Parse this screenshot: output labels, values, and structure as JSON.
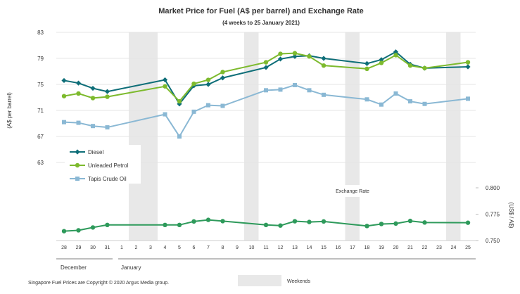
{
  "chart_data": {
    "type": "line",
    "title": "Market Price for Fuel (A$ per barrel) and Exchange Rate",
    "subtitle": "(4 weeks to 25 January 2021)",
    "ylabel": "(A$ per barrel)",
    "ylabel_right": "(US$ / A$)",
    "x": [
      "28",
      "29",
      "30",
      "31",
      "1",
      "2",
      "3",
      "4",
      "5",
      "6",
      "7",
      "8",
      "9",
      "10",
      "11",
      "12",
      "13",
      "14",
      "15",
      "16",
      "17",
      "18",
      "19",
      "20",
      "21",
      "22",
      "23",
      "24",
      "25"
    ],
    "months": [
      "December",
      "January"
    ],
    "ylim": [
      63,
      83
    ],
    "yticks": [
      63,
      67,
      71,
      75,
      79,
      83
    ],
    "ylim_right": [
      0.75,
      0.8
    ],
    "yticks_right": [
      0.75,
      0.775,
      0.8
    ],
    "yticks_right_labels": [
      "0.750",
      "0.775",
      "0.800"
    ],
    "weekend_bands": [
      [
        "1",
        "3"
      ],
      [
        "9",
        "10"
      ],
      [
        "16",
        "17"
      ],
      [
        "23",
        "24"
      ]
    ],
    "series": [
      {
        "name": "Diesel",
        "color": "#0e6e78",
        "marker": "diamond",
        "values": [
          75.6,
          75.2,
          74.4,
          73.9,
          null,
          null,
          null,
          75.7,
          72.0,
          74.8,
          75.0,
          76.0,
          null,
          null,
          77.6,
          78.9,
          79.3,
          79.4,
          79.0,
          null,
          null,
          78.2,
          78.8,
          80.0,
          78.1,
          77.5,
          null,
          null,
          77.7
        ]
      },
      {
        "name": "Unleaded Petrol",
        "color": "#7dba2d",
        "marker": "circle",
        "values": [
          73.2,
          73.6,
          72.9,
          73.1,
          null,
          null,
          null,
          74.7,
          72.4,
          75.1,
          75.7,
          76.9,
          null,
          null,
          78.4,
          79.7,
          79.8,
          79.3,
          77.9,
          null,
          null,
          77.4,
          78.3,
          79.5,
          77.9,
          77.5,
          null,
          null,
          78.4
        ]
      },
      {
        "name": "Tapis Crude Oil",
        "color": "#8ab8d4",
        "marker": "square",
        "values": [
          69.2,
          69.1,
          68.6,
          68.4,
          null,
          null,
          null,
          70.4,
          67.0,
          70.8,
          71.8,
          71.7,
          null,
          null,
          74.1,
          74.2,
          74.9,
          74.1,
          73.4,
          null,
          null,
          72.7,
          71.9,
          73.6,
          72.4,
          72.0,
          null,
          null,
          72.8
        ]
      },
      {
        "name": "Exchange Rate",
        "color": "#2e9a5b",
        "marker": "circle",
        "axis": "right",
        "values": [
          0.7589,
          0.7597,
          0.7624,
          0.7648,
          null,
          null,
          null,
          0.7648,
          0.7648,
          0.7681,
          0.7696,
          0.7684,
          null,
          null,
          0.7648,
          0.7642,
          0.7683,
          0.7676,
          0.7681,
          null,
          null,
          0.7638,
          0.7657,
          0.7661,
          0.7686,
          0.7671,
          null,
          null,
          0.7669
        ]
      }
    ],
    "legend_position": "left",
    "annotation_exchange": "Exchange  Rate",
    "weekends_legend": "Weekends",
    "footer": "Singapore  Fuel Prices are Copyright © 2020  Argus Media group."
  }
}
